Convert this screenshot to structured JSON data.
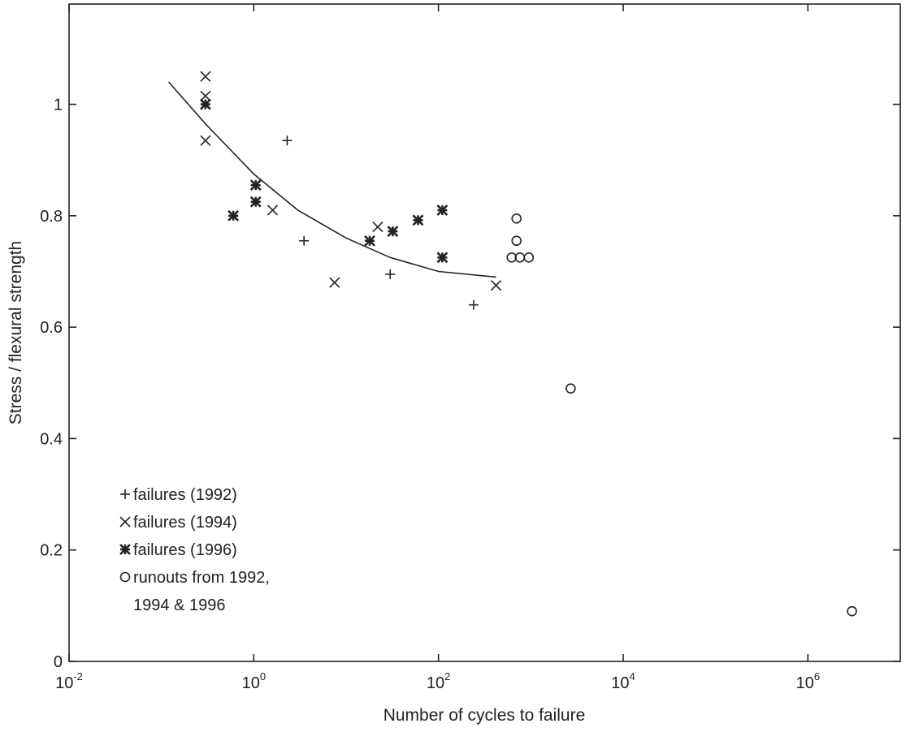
{
  "chart_data": {
    "type": "scatter",
    "xlabel": "Number of cycles to failure",
    "ylabel": "Stress / flexural strength",
    "xscale": "log",
    "xlim": [
      0.01,
      10000000
    ],
    "ylim": [
      0,
      1.18
    ],
    "xticks": [
      {
        "value": 0.01,
        "base": "10",
        "exp": "-2"
      },
      {
        "value": 1,
        "base": "10",
        "exp": "0"
      },
      {
        "value": 100,
        "base": "10",
        "exp": "2"
      },
      {
        "value": 10000,
        "base": "10",
        "exp": "4"
      },
      {
        "value": 1000000,
        "base": "10",
        "exp": "6"
      }
    ],
    "yticks": [
      {
        "value": 0,
        "label": "0"
      },
      {
        "value": 0.2,
        "label": "0.2"
      },
      {
        "value": 0.4,
        "label": "0.4"
      },
      {
        "value": 0.6,
        "label": "0.6"
      },
      {
        "value": 0.8,
        "label": "0.8"
      },
      {
        "value": 1,
        "label": "1"
      }
    ],
    "grid": false,
    "legend_position": "bottom-left",
    "series": [
      {
        "name": "failures (1992)",
        "marker": "plus",
        "points": [
          [
            2.3,
            0.935
          ],
          [
            3.5,
            0.755
          ],
          [
            30,
            0.695
          ],
          [
            240,
            0.64
          ]
        ]
      },
      {
        "name": "failures (1994)",
        "marker": "x",
        "points": [
          [
            0.3,
            1.05
          ],
          [
            0.3,
            1.015
          ],
          [
            0.3,
            0.935
          ],
          [
            1.6,
            0.81
          ],
          [
            7.5,
            0.68
          ],
          [
            22,
            0.78
          ],
          [
            420,
            0.675
          ]
        ]
      },
      {
        "name": "failures (1996)",
        "marker": "asterisk",
        "points": [
          [
            0.3,
            1.0
          ],
          [
            0.6,
            0.8
          ],
          [
            1.05,
            0.855
          ],
          [
            1.05,
            0.825
          ],
          [
            18,
            0.755
          ],
          [
            32,
            0.772
          ],
          [
            60,
            0.792
          ],
          [
            110,
            0.81
          ],
          [
            110,
            0.725
          ]
        ]
      },
      {
        "name": "runouts from 1992,\n1994 & 1996",
        "marker": "circle",
        "points": [
          [
            700,
            0.795
          ],
          [
            700,
            0.755
          ],
          [
            620,
            0.725
          ],
          [
            760,
            0.725
          ],
          [
            950,
            0.725
          ],
          [
            2700,
            0.49
          ],
          [
            3000000,
            0.09
          ]
        ]
      }
    ],
    "fit_curve": {
      "points": [
        [
          0.12,
          1.04
        ],
        [
          0.3,
          0.965
        ],
        [
          1,
          0.875
        ],
        [
          3,
          0.81
        ],
        [
          10,
          0.76
        ],
        [
          30,
          0.725
        ],
        [
          100,
          0.7
        ],
        [
          420,
          0.69
        ]
      ]
    },
    "legend_lines": [
      [
        "failures (1992)"
      ],
      [
        "failures (1994)"
      ],
      [
        "failures (1996)"
      ],
      [
        "runouts from 1992,",
        "1994 & 1996"
      ]
    ]
  }
}
